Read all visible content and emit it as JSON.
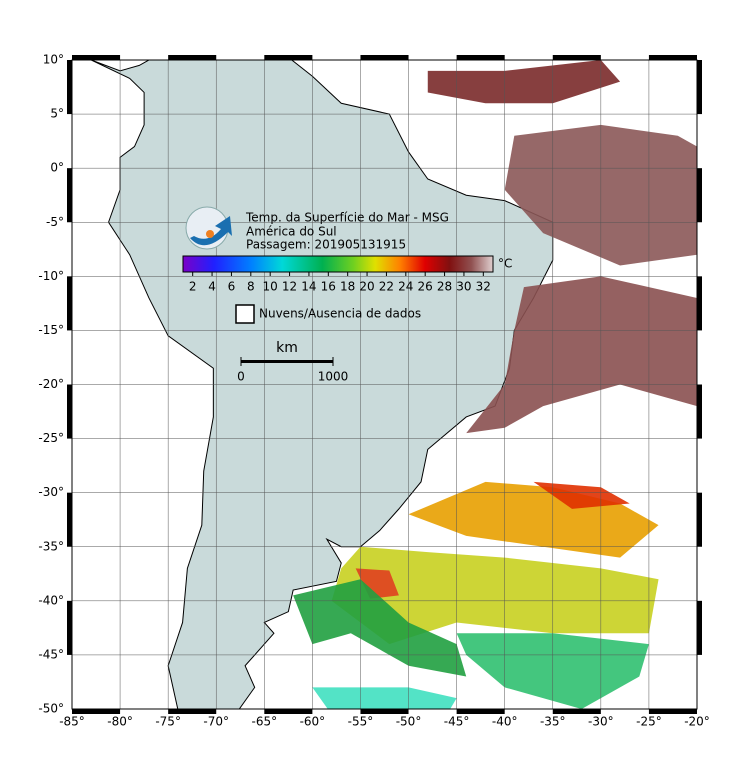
{
  "title_lines": [
    "Temp. da Superfície do Mar - MSG",
    "América do Sul",
    "Passagem: 201905131915"
  ],
  "colorbar": {
    "unit": "°C",
    "range": [
      1,
      33
    ],
    "ticks": [
      2,
      4,
      6,
      8,
      10,
      12,
      14,
      16,
      18,
      20,
      22,
      24,
      26,
      28,
      30,
      32
    ]
  },
  "legend": {
    "label": "Nuvens/Ausencia de dados"
  },
  "scale_bar": {
    "unit": "km",
    "ticks": [
      0,
      1000
    ]
  },
  "map": {
    "xlim": [
      -85,
      -20
    ],
    "ylim": [
      -50,
      10
    ],
    "xticks": [
      {
        "value": -85,
        "label": "-85°"
      },
      {
        "value": -80,
        "label": "-80°"
      },
      {
        "value": -75,
        "label": "-75°"
      },
      {
        "value": -70,
        "label": "-70°"
      },
      {
        "value": -65,
        "label": "-65°"
      },
      {
        "value": -60,
        "label": "-60°"
      },
      {
        "value": -55,
        "label": "-55°"
      },
      {
        "value": -50,
        "label": "-50°"
      },
      {
        "value": -45,
        "label": "-45°"
      },
      {
        "value": -40,
        "label": "-40°"
      },
      {
        "value": -35,
        "label": "-35°"
      },
      {
        "value": -30,
        "label": "-30°"
      },
      {
        "value": -25,
        "label": "-25°"
      },
      {
        "value": -20,
        "label": "-20°"
      }
    ],
    "yticks": [
      {
        "value": 10,
        "label": "10°"
      },
      {
        "value": 5,
        "label": "5°"
      },
      {
        "value": 0,
        "label": "0°"
      },
      {
        "value": -5,
        "label": "-5°"
      },
      {
        "value": -10,
        "label": "-10°"
      },
      {
        "value": -15,
        "label": "-15°"
      },
      {
        "value": -20,
        "label": "-20°"
      },
      {
        "value": -25,
        "label": "-25°"
      },
      {
        "value": -30,
        "label": "-30°"
      },
      {
        "value": -35,
        "label": "-35°"
      },
      {
        "value": -40,
        "label": "-40°"
      },
      {
        "value": -45,
        "label": "-45°"
      },
      {
        "value": -50,
        "label": "-50°"
      }
    ]
  }
}
